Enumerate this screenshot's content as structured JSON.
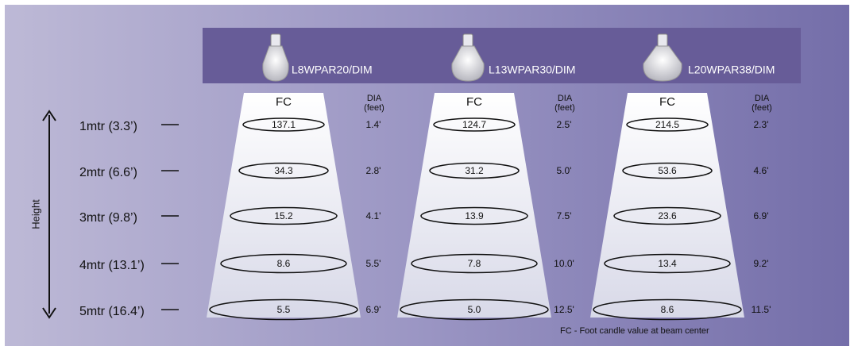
{
  "axis_label": "Height",
  "heights": [
    "1mtr (3.3’)",
    "2mtr (6.6’)",
    "3mtr (9.8’)",
    "4mtr (13.1’)",
    "5mtr (16.4’)"
  ],
  "products": [
    {
      "name": "L8WPAR20/DIM",
      "fc_header": "FC",
      "dia_header": "DIA",
      "dia_unit": "(feet)",
      "fc": [
        "137.1",
        "34.3",
        "15.2",
        "8.6",
        "5.5"
      ],
      "dia": [
        "1.4'",
        "2.8'",
        "4.1'",
        "5.5'",
        "6.9'"
      ]
    },
    {
      "name": "L13WPAR30/DIM",
      "fc_header": "FC",
      "dia_header": "DIA",
      "dia_unit": "(feet)",
      "fc": [
        "124.7",
        "31.2",
        "13.9",
        "7.8",
        "5.0"
      ],
      "dia": [
        "2.5'",
        "5.0'",
        "7.5'",
        "10.0'",
        "12.5'"
      ]
    },
    {
      "name": "L20WPAR38/DIM",
      "fc_header": "FC",
      "dia_header": "DIA",
      "dia_unit": "(feet)",
      "fc": [
        "214.5",
        "53.6",
        "23.6",
        "13.4",
        "8.6"
      ],
      "dia": [
        "2.3'",
        "4.6'",
        "6.9'",
        "9.2'",
        "11.5'"
      ]
    }
  ],
  "footnote": "FC - Foot candle value at beam center"
}
